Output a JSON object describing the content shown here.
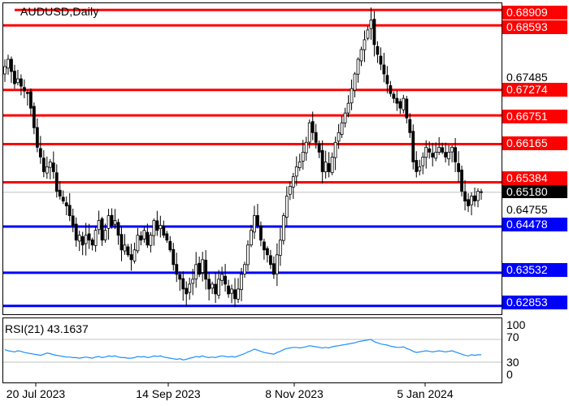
{
  "chart_title": "AUDUSD,Daily",
  "rsi_title": "RSI(21) 43.1637",
  "x_axis_labels": [
    "20 Jul 2023",
    "14 Sep 2023",
    "8 Nov 2023",
    "5 Jan 2024"
  ],
  "price_axis_ticks": [
    "0.67485",
    "0.64755"
  ],
  "current_price_label": "0.65180",
  "rsi_axis_ticks": [
    "100",
    "70",
    "30",
    "0"
  ],
  "colors": {
    "resistance": "#ff0000",
    "support": "#0000ff",
    "candle": "#000000",
    "rsi_line": "#1e90ff",
    "rsi_level": "#c0c0c0"
  },
  "chart_data": [
    {
      "type": "candlestick",
      "symbol": "AUDUSD",
      "timeframe": "Daily",
      "ylim": [
        0.6275,
        0.6898
      ],
      "x_ticks": [
        "20 Jul 2023",
        "14 Sep 2023",
        "8 Nov 2023",
        "5 Jan 2024"
      ],
      "current_price": 0.6518,
      "resistance_levels": [
        {
          "label": "0.68909",
          "value": 0.68909
        },
        {
          "label": "0.68593",
          "value": 0.68593
        },
        {
          "label": "0.67274",
          "value": 0.67274
        },
        {
          "label": "0.66751",
          "value": 0.66751
        },
        {
          "label": "0.66165",
          "value": 0.66165
        },
        {
          "label": "0.65384",
          "value": 0.65384
        }
      ],
      "support_levels": [
        {
          "label": "0.64478",
          "value": 0.64478
        },
        {
          "label": "0.63532",
          "value": 0.63532
        },
        {
          "label": "0.62853",
          "value": 0.62853
        }
      ],
      "closes": [
        0.6775,
        0.679,
        0.6765,
        0.674,
        0.675,
        0.6735,
        0.6725,
        0.672,
        0.669,
        0.665,
        0.661,
        0.659,
        0.656,
        0.657,
        0.658,
        0.656,
        0.652,
        0.651,
        0.65,
        0.649,
        0.647,
        0.645,
        0.642,
        0.643,
        0.641,
        0.643,
        0.642,
        0.641,
        0.644,
        0.646,
        0.642,
        0.644,
        0.647,
        0.645,
        0.646,
        0.643,
        0.64,
        0.641,
        0.639,
        0.638,
        0.64,
        0.643,
        0.642,
        0.644,
        0.641,
        0.643,
        0.646,
        0.644,
        0.645,
        0.643,
        0.642,
        0.64,
        0.637,
        0.635,
        0.634,
        0.632,
        0.631,
        0.633,
        0.634,
        0.637,
        0.635,
        0.638,
        0.634,
        0.632,
        0.633,
        0.631,
        0.634,
        0.635,
        0.633,
        0.631,
        0.632,
        0.63,
        0.632,
        0.635,
        0.637,
        0.641,
        0.644,
        0.647,
        0.645,
        0.642,
        0.64,
        0.639,
        0.637,
        0.635,
        0.639,
        0.642,
        0.647,
        0.651,
        0.653,
        0.655,
        0.657,
        0.658,
        0.66,
        0.662,
        0.666,
        0.664,
        0.662,
        0.66,
        0.656,
        0.658,
        0.656,
        0.659,
        0.662,
        0.664,
        0.666,
        0.668,
        0.67,
        0.673,
        0.676,
        0.679,
        0.681,
        0.683,
        0.685,
        0.687,
        0.682,
        0.68,
        0.678,
        0.676,
        0.674,
        0.672,
        0.671,
        0.67,
        0.669,
        0.671,
        0.667,
        0.664,
        0.658,
        0.656,
        0.657,
        0.659,
        0.661,
        0.66,
        0.659,
        0.66,
        0.661,
        0.66,
        0.659,
        0.66,
        0.661,
        0.658,
        0.656,
        0.652,
        0.65,
        0.649,
        0.651,
        0.65,
        0.652,
        0.6518
      ]
    },
    {
      "type": "line",
      "name": "RSI(21)",
      "last_value": 43.1637,
      "ylim": [
        0,
        100
      ],
      "levels": [
        70,
        30
      ],
      "values": [
        52,
        50,
        49,
        48,
        50,
        49,
        47,
        46,
        45,
        44,
        43,
        42,
        44,
        46,
        45,
        43,
        42,
        41,
        40,
        39,
        39,
        38,
        38,
        37,
        38,
        39,
        38,
        37,
        39,
        40,
        38,
        39,
        41,
        40,
        41,
        39,
        38,
        38,
        37,
        37,
        38,
        40,
        39,
        40,
        38,
        39,
        41,
        40,
        41,
        39,
        38,
        37,
        36,
        35,
        36,
        34,
        35,
        37,
        38,
        40,
        39,
        41,
        39,
        38,
        39,
        38,
        40,
        41,
        40,
        39,
        40,
        39,
        41,
        43,
        45,
        48,
        50,
        53,
        51,
        49,
        47,
        46,
        45,
        44,
        47,
        49,
        52,
        54,
        55,
        56,
        56,
        55,
        56,
        57,
        59,
        58,
        57,
        56,
        55,
        56,
        55,
        57,
        58,
        59,
        60,
        61,
        62,
        63,
        64,
        66,
        67,
        68,
        69,
        70,
        66,
        64,
        62,
        61,
        60,
        58,
        57,
        56,
        56,
        57,
        54,
        52,
        49,
        47,
        48,
        49,
        50,
        49,
        48,
        49,
        50,
        49,
        48,
        49,
        50,
        48,
        46,
        44,
        42,
        41,
        43,
        42,
        43,
        43
      ]
    }
  ]
}
